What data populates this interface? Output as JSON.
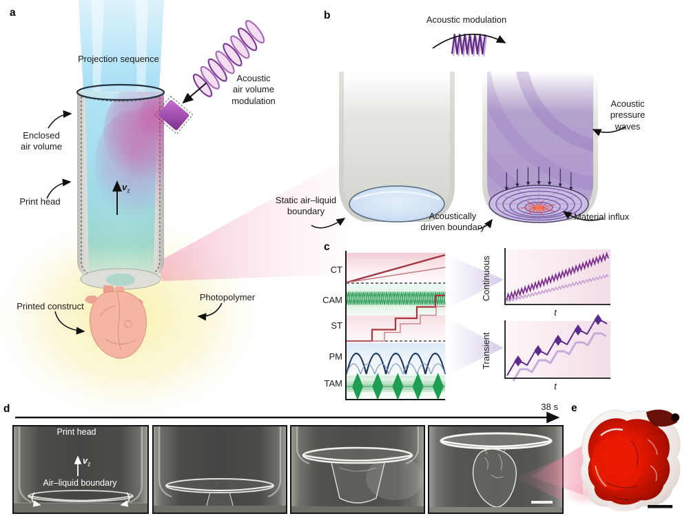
{
  "figure": {
    "panel_labels": {
      "a": "a",
      "b": "b",
      "c": "c",
      "d": "d",
      "e": "e"
    }
  },
  "panel_a": {
    "projection_sequence": "Projection sequence",
    "acoustic_air_volume_modulation": "Acoustic\nair volume\nmodulation",
    "enclosed_air_volume": "Enclosed\nair volume",
    "print_head": "Print head",
    "velocity_symbol": "v",
    "velocity_subscript": "z",
    "printed_construct": "Printed construct",
    "photopolymer": "Photopolymer"
  },
  "panel_b": {
    "acoustic_modulation": "Acoustic modulation",
    "static_air_liquid_boundary": "Static air–liquid\nboundary",
    "acoustic_pressure_waves": "Acoustic\npressure\nwaves",
    "acoustically_driven_boundary": "Acoustically\ndriven boundary",
    "material_influx": "Material influx"
  },
  "panel_c": {
    "row_labels": [
      "CT",
      "CAM",
      "ST",
      "PM",
      "TAM"
    ],
    "continuous_label": "Continuous",
    "transient_label": "Transient",
    "time_axis_label": "t"
  },
  "panel_d": {
    "elapsed_time": "38 s",
    "print_head": "Print head",
    "velocity_symbol": "v",
    "velocity_subscript": "z",
    "air_liquid_boundary": "Air–liquid boundary"
  },
  "colors": {
    "projection_blue": "#9fdcf5",
    "acoustic_purple": "#7c3b92",
    "magenta_field": "#cf5fa6",
    "pink_beam": "#ee8fb4",
    "photopolymer_yellow": "#f8f2b0",
    "construct_pink": "#f4b6a2",
    "signal_red": "#9e3742",
    "signal_green": "#2f9f58",
    "signal_navy": "#20375c",
    "continuous_purple": "#7b2d8e",
    "transient_purple": "#5d2b8c",
    "printed_heart_red": "#d81500"
  },
  "chart_data": [
    {
      "id": "control-signal-timelines",
      "type": "line",
      "title": "",
      "xlabel": "",
      "ylabel": "",
      "grid": false,
      "rows": [
        {
          "label": "CT",
          "kind": "continuous-ramp",
          "series": [
            {
              "name": "fast ramp",
              "slope": 1.0
            },
            {
              "name": "slow ramp",
              "slope": 0.55
            }
          ],
          "baseline_dashed": true,
          "color": "#9e3742",
          "bg": "#f6d6db"
        },
        {
          "label": "CAM",
          "kind": "continuous-oscillation",
          "cycles": 26,
          "amplitude": 1,
          "color": "#2f9f58",
          "bg": "#def0e2"
        },
        {
          "label": "ST",
          "kind": "staircase",
          "steps": 5,
          "series": [
            {
              "name": "leading staircase"
            },
            {
              "name": "delayed staircase"
            }
          ],
          "baseline_dashed": true,
          "color": "#a9353f",
          "bg": "#f6d6db"
        },
        {
          "label": "PM",
          "kind": "rectified-arches",
          "arches": 5,
          "secondary_arches": 7,
          "color": "#20375c",
          "bg": "#dce8f6"
        },
        {
          "label": "TAM",
          "kind": "burst-packets",
          "bursts": 5,
          "color": "#1f9e53",
          "bg": "#def0e2"
        }
      ]
    },
    {
      "id": "continuous-print-mode",
      "type": "line",
      "ylabel": "Continuous",
      "xlabel": "t",
      "legend": "none",
      "series": [
        {
          "name": "high-rate oscillating ramp",
          "kind": "ramp-with-oscillation",
          "slope": 1.0,
          "cycles": 30,
          "color": "#7b2d8e"
        },
        {
          "name": "low-rate oscillating ramp",
          "kind": "ramp-with-oscillation",
          "slope": 0.55,
          "cycles": 30,
          "color": "#c79ad2"
        }
      ]
    },
    {
      "id": "transient-print-mode",
      "type": "line",
      "ylabel": "Transient",
      "xlabel": "t",
      "legend": "none",
      "series": [
        {
          "name": "stepped rise with transient bursts",
          "steps": 5,
          "burst_marker": "diamond",
          "color": "#5d2b8c"
        },
        {
          "name": "delayed stepped rise",
          "steps": 5,
          "color": "#baa2d6"
        }
      ]
    }
  ]
}
